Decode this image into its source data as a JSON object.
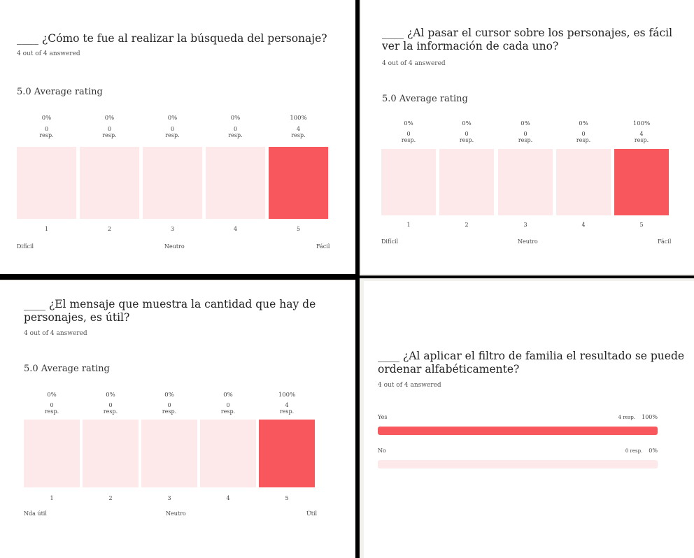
{
  "charts": [
    {
      "title": "____ ¿Cómo te fue al realizar la búsqueda del personaje?",
      "answered": "4 out of 4 answered",
      "average": "5.0 Average rating",
      "anchors": [
        "Difícil",
        "Neutro",
        "Fácil"
      ]
    },
    {
      "title": "____ ¿Al pasar el cursor sobre los personajes, es fácil ver la información de cada uno?",
      "answered": "4 out of 4 answered",
      "average": "5.0 Average rating",
      "anchors": [
        "Difícil",
        "Neutro",
        "Fácil"
      ]
    },
    {
      "title": "____ ¿El mensaje que muestra la cantidad que hay de personajes, es útil?",
      "answered": "4 out of 4 answered",
      "average": "5.0 Average rating",
      "anchors": [
        "Nda útil",
        "Neutro",
        "Útil"
      ]
    },
    {
      "title": "____ ¿Al aplicar el filtro de familia el resultado se puede ordenar alfabéticamente?",
      "answered": "4 out of 4 answered"
    }
  ],
  "chart_data": [
    {
      "type": "bar",
      "title": "____ ¿Cómo te fue al realizar la búsqueda del personaje?",
      "categories": [
        "1",
        "2",
        "3",
        "4",
        "5"
      ],
      "percent_labels": [
        "0%",
        "0%",
        "0%",
        "0%",
        "100%"
      ],
      "values": [
        0,
        0,
        0,
        0,
        4
      ],
      "unit": "resp."
    },
    {
      "type": "bar",
      "title": "____ ¿Al pasar el cursor sobre los personajes, es fácil ver la información de cada uno?",
      "categories": [
        "1",
        "2",
        "3",
        "4",
        "5"
      ],
      "percent_labels": [
        "0%",
        "0%",
        "0%",
        "0%",
        "100%"
      ],
      "values": [
        0,
        0,
        0,
        0,
        4
      ],
      "unit": "resp."
    },
    {
      "type": "bar",
      "title": "____ ¿El mensaje que muestra la cantidad que hay de personajes, es útil?",
      "categories": [
        "1",
        "2",
        "3",
        "4",
        "5"
      ],
      "percent_labels": [
        "0%",
        "0%",
        "0%",
        "0%",
        "100%"
      ],
      "values": [
        0,
        0,
        0,
        0,
        4
      ],
      "unit": "resp."
    },
    {
      "type": "bar",
      "orientation": "horizontal",
      "title": "____ ¿Al aplicar el filtro de familia el resultado se puede ordenar alfabéticamente?",
      "categories": [
        "Yes",
        "No"
      ],
      "values": [
        4,
        0
      ],
      "resp_labels": [
        "4 resp.",
        "0 resp."
      ],
      "percent_labels": [
        "100%",
        "0%"
      ],
      "percent_values": [
        100,
        0
      ]
    }
  ]
}
